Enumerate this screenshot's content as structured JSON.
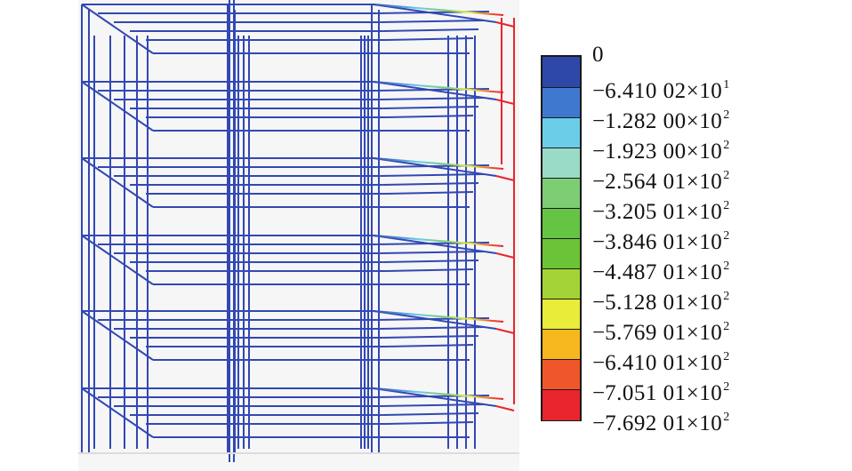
{
  "legend": {
    "entries": [
      {
        "color": "#2e48a8",
        "sign": "",
        "mantissa": "0",
        "exponent": ""
      },
      {
        "color": "#3f78cf",
        "sign": "−",
        "mantissa": "6.410 02×10",
        "exponent": "1"
      },
      {
        "color": "#6ccde8",
        "sign": "−",
        "mantissa": "1.282 00×10",
        "exponent": "2"
      },
      {
        "color": "#9adbc7",
        "sign": "−",
        "mantissa": "1.923 00×10",
        "exponent": "2"
      },
      {
        "color": "#7ccd74",
        "sign": "−",
        "mantissa": "2.564 01×10",
        "exponent": "2"
      },
      {
        "color": "#66c444",
        "sign": "−",
        "mantissa": "3.205 01×10",
        "exponent": "2"
      },
      {
        "color": "#6bc437",
        "sign": "−",
        "mantissa": "3.846 01×10",
        "exponent": "2"
      },
      {
        "color": "#a3d337",
        "sign": "−",
        "mantissa": "4.487 01×10",
        "exponent": "2"
      },
      {
        "color": "#e9ec38",
        "sign": "−",
        "mantissa": "5.128 01×10",
        "exponent": "2"
      },
      {
        "color": "#f6b81d",
        "sign": "−",
        "mantissa": "5.769 01×10",
        "exponent": "2"
      },
      {
        "color": "#ef5629",
        "sign": "−",
        "mantissa": "6.410 01×10",
        "exponent": "2"
      },
      {
        "color": "#e8252d",
        "sign": "−",
        "mantissa": "7.051 01×10",
        "exponent": "2"
      }
    ],
    "last_label": {
      "sign": "−",
      "mantissa": "7.692 01×10",
      "exponent": "2"
    }
  },
  "frame": {
    "stories": 5,
    "bays": 2,
    "member_color": "#3248b4",
    "max_deflection_color": "#e8252d",
    "background": "#f6f6f6"
  }
}
